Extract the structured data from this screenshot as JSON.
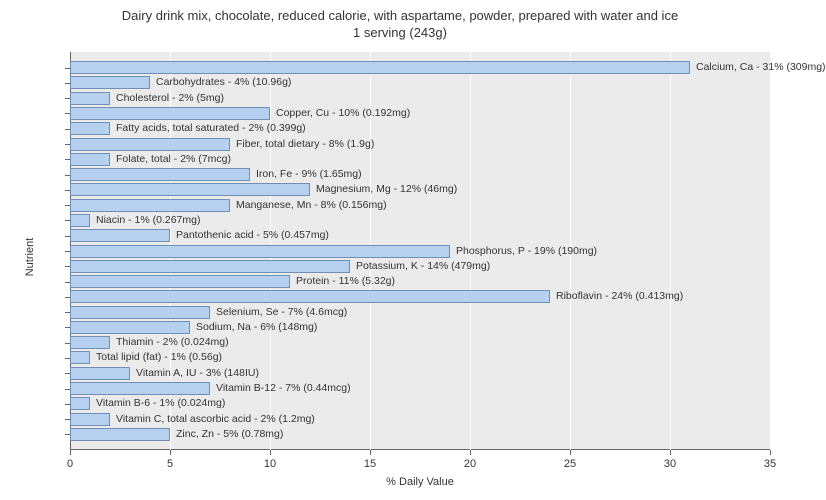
{
  "chart": {
    "type": "bar-horizontal",
    "title_line1": "Dairy drink mix, chocolate, reduced calorie, with aspartame, powder, prepared with water and ice",
    "title_line2": "1 serving (243g)",
    "title_fontsize": 13,
    "x_axis_title": "% Daily Value",
    "y_axis_title": "Nutrient",
    "axis_fontsize": 11,
    "label_fontsize": 10.5,
    "background_color": "#ffffff",
    "plot_background": "#ebebeb",
    "grid_color": "#ffffff",
    "bar_color": "#b6d0ef",
    "bar_border_color": "#6f8fb5",
    "axis_color": "#666666",
    "text_color": "#333333",
    "xlim": [
      0,
      35
    ],
    "xtick_step": 5,
    "bars": [
      {
        "label": "Calcium, Ca - 31% (309mg)",
        "value": 31
      },
      {
        "label": "Carbohydrates - 4% (10.96g)",
        "value": 4
      },
      {
        "label": "Cholesterol - 2% (5mg)",
        "value": 2
      },
      {
        "label": "Copper, Cu - 10% (0.192mg)",
        "value": 10
      },
      {
        "label": "Fatty acids, total saturated - 2% (0.399g)",
        "value": 2
      },
      {
        "label": "Fiber, total dietary - 8% (1.9g)",
        "value": 8
      },
      {
        "label": "Folate, total - 2% (7mcg)",
        "value": 2
      },
      {
        "label": "Iron, Fe - 9% (1.65mg)",
        "value": 9
      },
      {
        "label": "Magnesium, Mg - 12% (46mg)",
        "value": 12
      },
      {
        "label": "Manganese, Mn - 8% (0.156mg)",
        "value": 8
      },
      {
        "label": "Niacin - 1% (0.267mg)",
        "value": 1
      },
      {
        "label": "Pantothenic acid - 5% (0.457mg)",
        "value": 5
      },
      {
        "label": "Phosphorus, P - 19% (190mg)",
        "value": 19
      },
      {
        "label": "Potassium, K - 14% (479mg)",
        "value": 14
      },
      {
        "label": "Protein - 11% (5.32g)",
        "value": 11
      },
      {
        "label": "Riboflavin - 24% (0.413mg)",
        "value": 24
      },
      {
        "label": "Selenium, Se - 7% (4.6mcg)",
        "value": 7
      },
      {
        "label": "Sodium, Na - 6% (148mg)",
        "value": 6
      },
      {
        "label": "Thiamin - 2% (0.024mg)",
        "value": 2
      },
      {
        "label": "Total lipid (fat) - 1% (0.56g)",
        "value": 1
      },
      {
        "label": "Vitamin A, IU - 3% (148IU)",
        "value": 3
      },
      {
        "label": "Vitamin B-12 - 7% (0.44mcg)",
        "value": 7
      },
      {
        "label": "Vitamin B-6 - 1% (0.024mg)",
        "value": 1
      },
      {
        "label": "Vitamin C, total ascorbic acid - 2% (1.2mg)",
        "value": 2
      },
      {
        "label": "Zinc, Zn - 5% (0.78mg)",
        "value": 5
      }
    ]
  }
}
